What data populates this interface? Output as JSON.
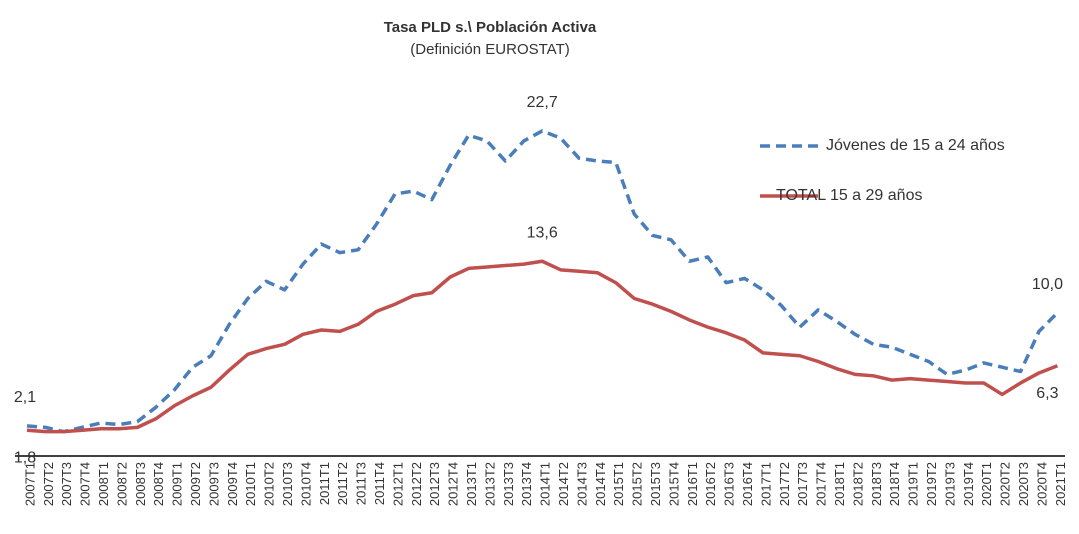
{
  "chart_data": {
    "type": "line",
    "title": "Tasa PLD s.\\ Población Activa",
    "subtitle": "(Definición EUROSTAT)",
    "categories": [
      "2007T1",
      "2007T2",
      "2007T3",
      "2007T4",
      "2008T1",
      "2008T2",
      "2008T3",
      "2008T4",
      "2009T1",
      "2009T2",
      "2009T3",
      "2009T4",
      "2010T1",
      "2010T2",
      "2010T3",
      "2010T4",
      "2011T1",
      "2011T2",
      "2011T3",
      "2011T4",
      "2012T1",
      "2012T2",
      "2012T3",
      "2012T4",
      "2013T1",
      "2013T2",
      "2013T3",
      "2013T4",
      "2014T1",
      "2014T2",
      "2014T3",
      "2014T4",
      "2015T1",
      "2015T2",
      "2015T3",
      "2015T4",
      "2016T1",
      "2016T2",
      "2016T3",
      "2016T4",
      "2017T1",
      "2017T2",
      "2017T3",
      "2017T4",
      "2018T1",
      "2018T2",
      "2018T3",
      "2018T4",
      "2019T1",
      "2019T2",
      "2019T3",
      "2019T4",
      "2020T1",
      "2020T2",
      "2020T3",
      "2020T4",
      "2021T1"
    ],
    "series": [
      {
        "name": "Jóvenes de 15 a 24 años",
        "color": "#4a7ebb",
        "dashed": true,
        "values": [
          2.1,
          2.0,
          1.7,
          2.0,
          2.3,
          2.2,
          2.4,
          3.4,
          4.6,
          6.2,
          7.0,
          9.2,
          11.0,
          12.2,
          11.6,
          13.4,
          14.8,
          14.2,
          14.4,
          16.2,
          18.3,
          18.5,
          17.9,
          20.3,
          22.4,
          22.0,
          20.6,
          22.0,
          22.7,
          22.2,
          20.8,
          20.6,
          20.5,
          16.9,
          15.4,
          15.1,
          13.6,
          13.9,
          12.1,
          12.4,
          11.6,
          10.5,
          9.0,
          10.2,
          9.4,
          8.5,
          7.8,
          7.6,
          7.1,
          6.6,
          5.7,
          6.0,
          6.5,
          6.2,
          5.9,
          8.7,
          10.0
        ],
        "value_labels": [
          "2,1",
          null,
          null,
          null,
          null,
          null,
          null,
          null,
          null,
          null,
          null,
          null,
          null,
          null,
          null,
          null,
          null,
          null,
          null,
          null,
          null,
          null,
          null,
          null,
          null,
          null,
          null,
          null,
          "22,7",
          null,
          null,
          null,
          null,
          null,
          null,
          null,
          null,
          null,
          null,
          null,
          null,
          null,
          null,
          null,
          null,
          null,
          null,
          null,
          null,
          null,
          null,
          null,
          null,
          null,
          null,
          null,
          "10,0"
        ]
      },
      {
        "name": "TOTAL 15 a 29 años",
        "color": "#c0504d",
        "dashed": false,
        "values": [
          1.8,
          1.7,
          1.7,
          1.8,
          1.9,
          1.9,
          2.0,
          2.6,
          3.5,
          4.2,
          4.8,
          6.0,
          7.1,
          7.5,
          7.8,
          8.5,
          8.8,
          8.7,
          9.2,
          10.1,
          10.6,
          11.2,
          11.4,
          12.5,
          13.1,
          13.2,
          13.3,
          13.4,
          13.6,
          13.0,
          12.9,
          12.8,
          12.1,
          11.0,
          10.6,
          10.1,
          9.5,
          9.0,
          8.6,
          8.1,
          7.2,
          7.1,
          7.0,
          6.6,
          6.1,
          5.7,
          5.6,
          5.3,
          5.4,
          5.3,
          5.2,
          5.1,
          5.1,
          4.3,
          5.1,
          5.8,
          6.3
        ],
        "value_labels": [
          "1,8",
          null,
          null,
          null,
          null,
          null,
          null,
          null,
          null,
          null,
          null,
          null,
          null,
          null,
          null,
          null,
          null,
          null,
          null,
          null,
          null,
          null,
          null,
          null,
          null,
          null,
          null,
          null,
          "13,6",
          null,
          null,
          null,
          null,
          null,
          null,
          null,
          null,
          null,
          null,
          null,
          null,
          null,
          null,
          null,
          null,
          null,
          null,
          null,
          null,
          null,
          null,
          null,
          null,
          null,
          null,
          null,
          "6,3"
        ]
      }
    ],
    "ylim": [
      0,
      25
    ]
  }
}
